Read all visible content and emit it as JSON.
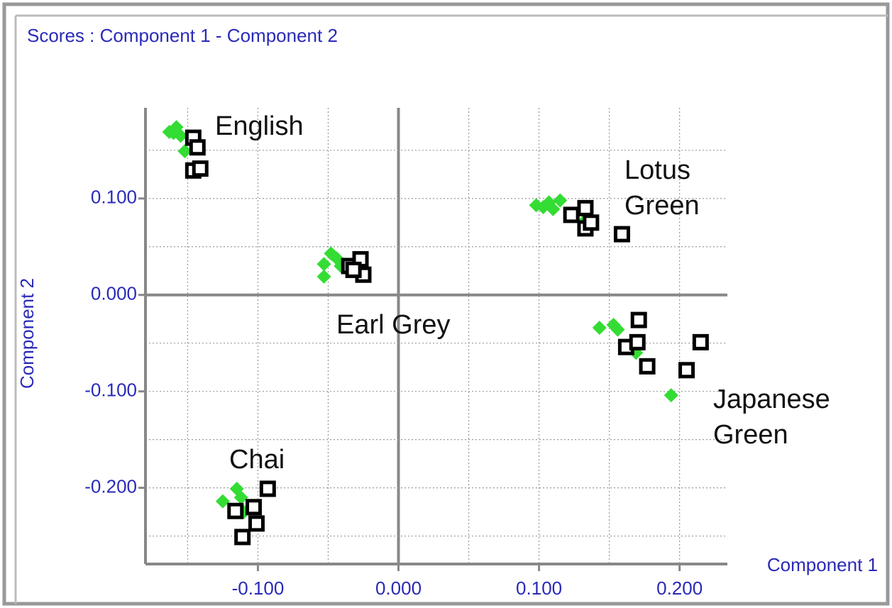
{
  "chart_data": {
    "type": "scatter",
    "title": "Scores : Component 1 - Component 2",
    "x_label": "Component 1",
    "y_label": "Component 2",
    "xlim": [
      -0.18,
      0.234
    ],
    "ylim": [
      -0.279,
      0.194
    ],
    "xticks": [
      {
        "value": -0.1,
        "label": "-0.100"
      },
      {
        "value": 0,
        "label": "0.000"
      },
      {
        "value": 0.1,
        "label": "0.100"
      },
      {
        "value": 0.2,
        "label": "0.200"
      }
    ],
    "yticks": [
      {
        "value": -0.2,
        "label": "-0.200"
      },
      {
        "value": -0.1,
        "label": "-0.100"
      },
      {
        "value": 0,
        "label": "0.000"
      },
      {
        "value": 0.1,
        "label": "0.100"
      }
    ],
    "xgrid": [
      -0.15,
      -0.1,
      -0.05,
      0,
      0.05,
      0.1,
      0.15,
      0.2
    ],
    "ygrid": [
      -0.25,
      -0.2,
      -0.15,
      -0.1,
      -0.05,
      0,
      0.05,
      0.1,
      0.15
    ],
    "grid": true,
    "annotations": [
      [
        "English"
      ],
      [
        "Lotus",
        "Green"
      ],
      [
        "Earl Grey"
      ],
      [
        "Japanese",
        "Green"
      ],
      [
        "Chai"
      ]
    ],
    "series": [
      {
        "color": "#33dd33",
        "marker": "diamond",
        "x": [
          -0.163,
          -0.158,
          -0.155,
          -0.152,
          -0.16,
          -0.053,
          -0.048,
          -0.044,
          -0.041,
          -0.053,
          0.098,
          0.103,
          0.11,
          0.115,
          0.132,
          0.107,
          0.143,
          0.153,
          0.156,
          0.169,
          0.194,
          -0.125,
          -0.115,
          -0.112,
          -0.11
        ],
        "values": [
          0.169,
          0.174,
          0.165,
          0.149,
          0.168,
          0.032,
          0.043,
          0.038,
          0.03,
          0.019,
          0.093,
          0.091,
          0.089,
          0.098,
          0.076,
          0.096,
          -0.034,
          -0.031,
          -0.036,
          -0.06,
          -0.104,
          -0.214,
          -0.201,
          -0.21,
          -0.225
        ]
      },
      {
        "color": "#000000",
        "marker": "square",
        "x": [
          -0.146,
          -0.143,
          -0.146,
          -0.141,
          -0.035,
          -0.027,
          -0.025,
          -0.032,
          0.123,
          0.133,
          0.133,
          0.137,
          0.159,
          0.171,
          0.162,
          0.17,
          0.177,
          0.205,
          0.215,
          -0.116,
          -0.103,
          -0.101,
          -0.093,
          -0.111
        ],
        "values": [
          0.163,
          0.153,
          0.129,
          0.131,
          0.03,
          0.037,
          0.021,
          0.026,
          0.083,
          0.09,
          0.069,
          0.075,
          0.063,
          -0.026,
          -0.054,
          -0.049,
          -0.074,
          -0.078,
          -0.049,
          -0.224,
          -0.22,
          -0.237,
          -0.201,
          -0.251
        ]
      }
    ]
  }
}
